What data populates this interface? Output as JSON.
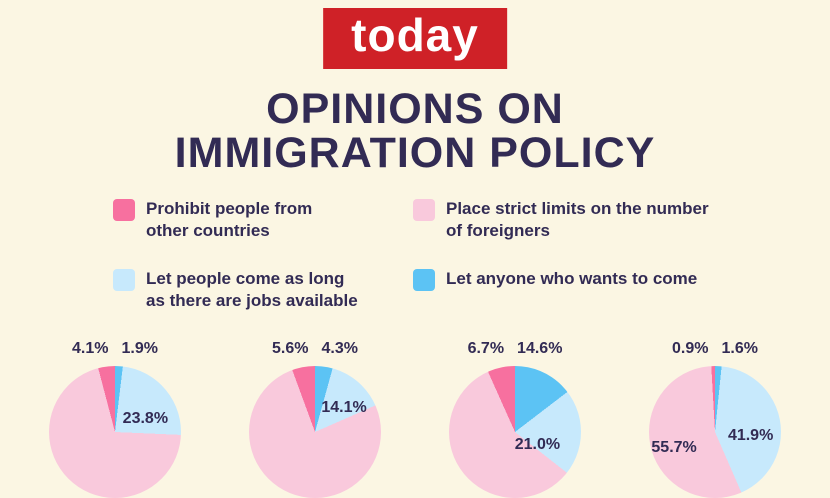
{
  "page": {
    "background": "#FBF6E3"
  },
  "logo": {
    "text": "today",
    "background": "#CF2127",
    "text_color": "#FFFFFF"
  },
  "title": {
    "line1": "OPINIONS ON",
    "line2": "IMMIGRATION POLICY",
    "color": "#322B54"
  },
  "legend": {
    "items": [
      {
        "key": "prohibit",
        "label": "Prohibit people from other countries"
      },
      {
        "key": "strict_limits",
        "label": "Place strict limits on the number of foreigners"
      },
      {
        "key": "jobs_available",
        "label": "Let people come as long as there are jobs available"
      },
      {
        "key": "let_anyone_come",
        "label": "Let anyone who wants to come"
      }
    ]
  },
  "chart_data": {
    "type": "pie",
    "title": "Opinions on Immigration Policy",
    "legend_entries": [
      "Prohibit people from other countries",
      "Place strict limits on the number of foreigners",
      "Let people come as long as there are jobs available",
      "Let anyone who wants to come"
    ],
    "slice_order_clockwise_from_top": [
      "let_anyone_come",
      "jobs_available",
      "strict_limits",
      "prohibit"
    ],
    "series_colors": {
      "prohibit": "#F7709F",
      "strict_limits": "#F9C9DC",
      "jobs_available": "#C7E9FC",
      "let_anyone_come": "#5CC3F4"
    },
    "charts": [
      {
        "values": {
          "prohibit": 4.1,
          "strict_limits": 70.2,
          "jobs_available": 23.8,
          "let_anyone_come": 1.9
        },
        "labels": {
          "prohibit": "4.1%",
          "let_anyone_come": "1.9%",
          "jobs_available": "23.8%"
        }
      },
      {
        "values": {
          "prohibit": 5.6,
          "strict_limits": 76.0,
          "jobs_available": 14.1,
          "let_anyone_come": 4.3
        },
        "labels": {
          "prohibit": "5.6%",
          "let_anyone_come": "4.3%",
          "jobs_available": "14.1%"
        }
      },
      {
        "values": {
          "prohibit": 6.7,
          "strict_limits": 57.7,
          "jobs_available": 21.0,
          "let_anyone_come": 14.6
        },
        "labels": {
          "prohibit": "6.7%",
          "let_anyone_come": "14.6%",
          "jobs_available": "21.0%"
        }
      },
      {
        "values": {
          "prohibit": 0.9,
          "strict_limits": 55.7,
          "jobs_available": 41.9,
          "let_anyone_come": 1.6
        },
        "labels": {
          "prohibit": "0.9%",
          "let_anyone_come": "1.6%",
          "jobs_available": "41.9%",
          "strict_limits": "55.7%"
        }
      }
    ]
  }
}
